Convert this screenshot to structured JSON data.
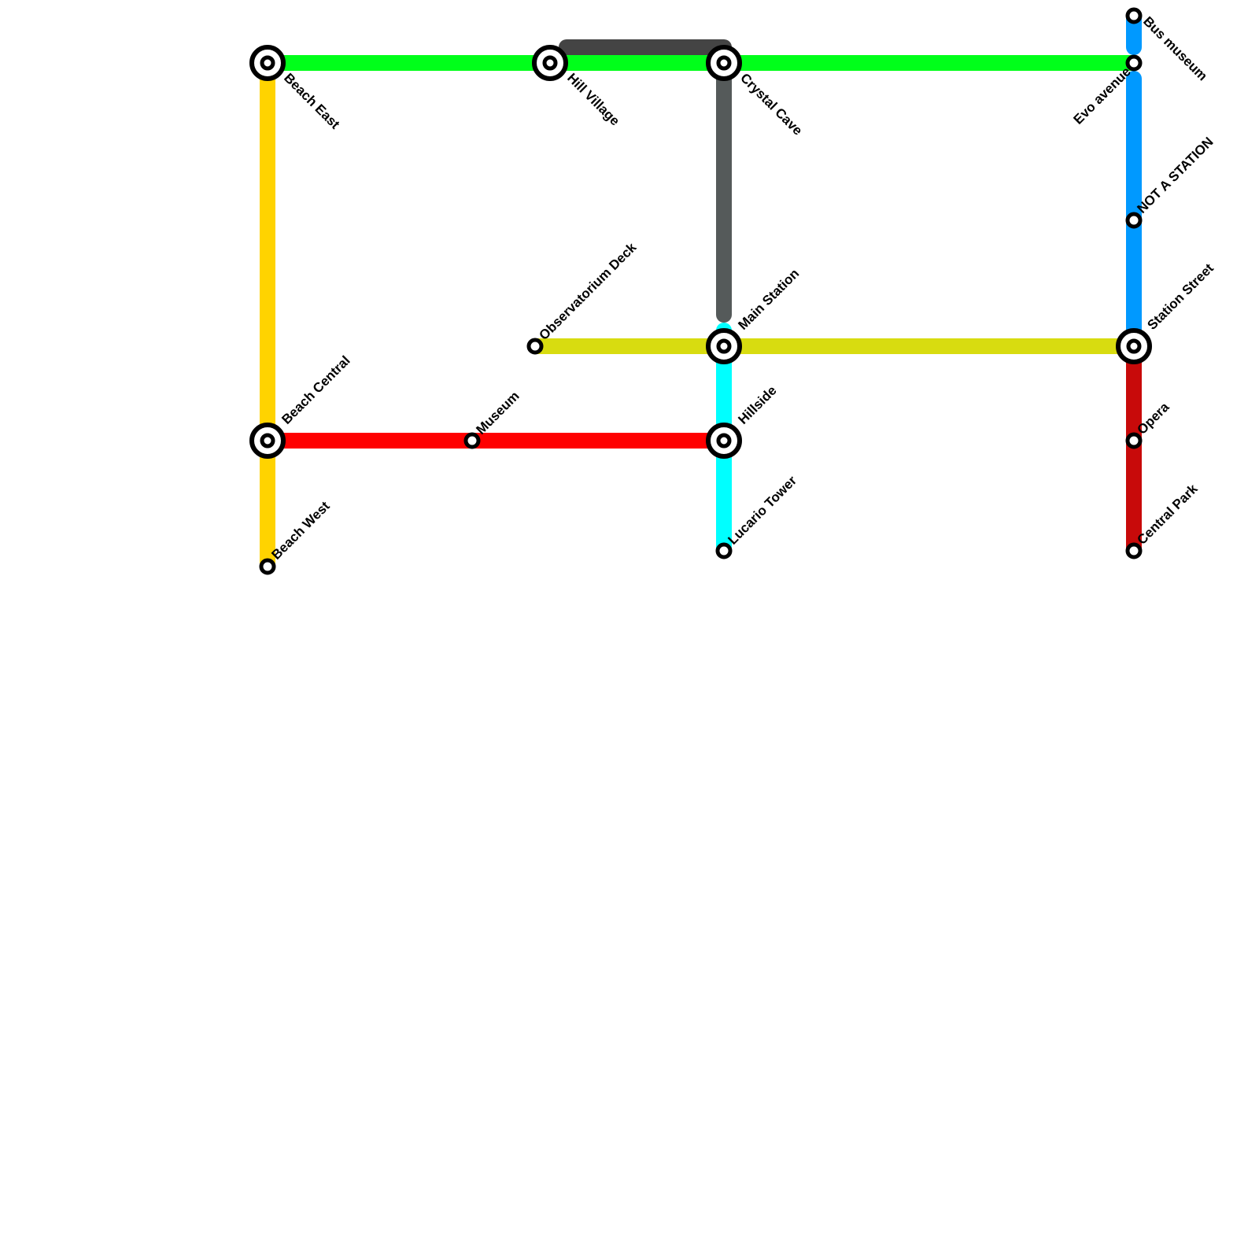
{
  "lines": {
    "green": "#00ff1a",
    "connector_dark": "#444444",
    "gray": "#555a5a",
    "gold": "#ffd300",
    "red": "#ff0000",
    "olive": "#d8dc10",
    "cyan": "#00ffff",
    "blue": "#0099ff",
    "dark_red": "#c80a0a"
  },
  "stations": {
    "beach_east": "Beach East",
    "hill_village": "Hill Village",
    "crystal_cave": "Crystal Cave",
    "bus_museum": "Bus museum",
    "evo_avenue": "Evo avenue",
    "not_a_station": "NOT A STATION",
    "station_street": "Station Street",
    "opera": "Opera",
    "central_park": "Central Park",
    "observatorium_deck": "Observatorium Deck",
    "main_station": "Main Station",
    "hillside": "Hillside",
    "lucario_tower": "Lucario Tower",
    "beach_central": "Beach Central",
    "museum": "Museum",
    "beach_west": "Beach West"
  }
}
